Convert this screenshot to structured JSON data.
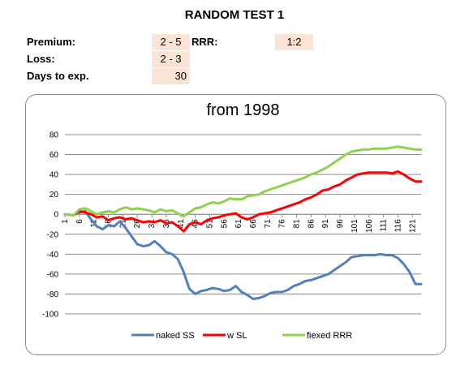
{
  "header": {
    "title": "RANDOM TEST 1",
    "premium_label": "Premium:",
    "premium_value": "2 - 5",
    "rrr_label": "RRR:",
    "rrr_value": "1:2",
    "loss_label": "Loss:",
    "loss_value": "2 - 3",
    "days_label": "Days to exp.",
    "days_value": "30"
  },
  "chart_data": {
    "type": "line",
    "title": "from 1998",
    "ylim": [
      -100,
      80
    ],
    "yticks": [
      -100,
      -80,
      -60,
      -40,
      -20,
      0,
      20,
      40,
      60,
      80
    ],
    "xlim": [
      1,
      124
    ],
    "xticks": [
      1,
      6,
      11,
      16,
      21,
      26,
      31,
      36,
      41,
      46,
      51,
      56,
      61,
      66,
      71,
      76,
      81,
      86,
      91,
      96,
      101,
      106,
      111,
      116,
      121
    ],
    "grid": true,
    "legend_position": "bottom",
    "series": [
      {
        "name": "naked SS",
        "color": "#4f81bd",
        "points": [
          [
            1,
            0
          ],
          [
            4,
            -1
          ],
          [
            6,
            2
          ],
          [
            8,
            3
          ],
          [
            10,
            -5
          ],
          [
            12,
            -12
          ],
          [
            14,
            -15
          ],
          [
            16,
            -11
          ],
          [
            18,
            -12
          ],
          [
            20,
            -7
          ],
          [
            22,
            -14
          ],
          [
            24,
            -22
          ],
          [
            26,
            -30
          ],
          [
            28,
            -32
          ],
          [
            30,
            -31
          ],
          [
            32,
            -27
          ],
          [
            34,
            -32
          ],
          [
            36,
            -38
          ],
          [
            38,
            -40
          ],
          [
            40,
            -45
          ],
          [
            42,
            -58
          ],
          [
            44,
            -75
          ],
          [
            46,
            -80
          ],
          [
            48,
            -77
          ],
          [
            50,
            -76
          ],
          [
            52,
            -74
          ],
          [
            54,
            -75
          ],
          [
            56,
            -77
          ],
          [
            58,
            -76
          ],
          [
            60,
            -72
          ],
          [
            62,
            -78
          ],
          [
            64,
            -81
          ],
          [
            66,
            -85
          ],
          [
            68,
            -84
          ],
          [
            70,
            -82
          ],
          [
            72,
            -79
          ],
          [
            74,
            -78
          ],
          [
            76,
            -78
          ],
          [
            78,
            -76
          ],
          [
            80,
            -72
          ],
          [
            82,
            -70
          ],
          [
            84,
            -67
          ],
          [
            86,
            -66
          ],
          [
            88,
            -64
          ],
          [
            90,
            -62
          ],
          [
            92,
            -60
          ],
          [
            94,
            -56
          ],
          [
            96,
            -52
          ],
          [
            98,
            -48
          ],
          [
            100,
            -43
          ],
          [
            102,
            -42
          ],
          [
            104,
            -41
          ],
          [
            106,
            -41
          ],
          [
            108,
            -41
          ],
          [
            110,
            -40
          ],
          [
            112,
            -41
          ],
          [
            114,
            -41
          ],
          [
            116,
            -44
          ],
          [
            118,
            -50
          ],
          [
            120,
            -58
          ],
          [
            122,
            -70
          ],
          [
            124,
            -70
          ]
        ]
      },
      {
        "name": "w SL",
        "color": "#ff0000",
        "points": [
          [
            1,
            0
          ],
          [
            4,
            -1
          ],
          [
            6,
            3
          ],
          [
            8,
            2
          ],
          [
            10,
            0
          ],
          [
            12,
            -3
          ],
          [
            14,
            -2
          ],
          [
            16,
            -6
          ],
          [
            18,
            -4
          ],
          [
            20,
            -3
          ],
          [
            22,
            -5
          ],
          [
            24,
            -4
          ],
          [
            26,
            -6
          ],
          [
            28,
            -8
          ],
          [
            30,
            -7
          ],
          [
            32,
            -8
          ],
          [
            34,
            -6
          ],
          [
            36,
            -9
          ],
          [
            38,
            -8
          ],
          [
            40,
            -12
          ],
          [
            42,
            -17
          ],
          [
            44,
            -10
          ],
          [
            46,
            -8
          ],
          [
            48,
            -10
          ],
          [
            50,
            -6
          ],
          [
            52,
            -4
          ],
          [
            54,
            -3
          ],
          [
            56,
            -1
          ],
          [
            58,
            0
          ],
          [
            60,
            1
          ],
          [
            62,
            -3
          ],
          [
            64,
            -5
          ],
          [
            66,
            -3
          ],
          [
            68,
            0
          ],
          [
            70,
            1
          ],
          [
            72,
            2
          ],
          [
            74,
            4
          ],
          [
            76,
            6
          ],
          [
            78,
            8
          ],
          [
            80,
            10
          ],
          [
            82,
            12
          ],
          [
            84,
            15
          ],
          [
            86,
            17
          ],
          [
            88,
            20
          ],
          [
            90,
            24
          ],
          [
            92,
            25
          ],
          [
            94,
            28
          ],
          [
            96,
            30
          ],
          [
            98,
            34
          ],
          [
            100,
            37
          ],
          [
            102,
            40
          ],
          [
            104,
            41
          ],
          [
            106,
            42
          ],
          [
            108,
            42
          ],
          [
            110,
            42
          ],
          [
            112,
            42
          ],
          [
            114,
            41
          ],
          [
            116,
            43
          ],
          [
            118,
            40
          ],
          [
            120,
            36
          ],
          [
            122,
            33
          ],
          [
            124,
            33
          ]
        ]
      },
      {
        "name": "fiexed RRR",
        "color": "#92d050",
        "points": [
          [
            1,
            0
          ],
          [
            4,
            -1
          ],
          [
            6,
            5
          ],
          [
            8,
            6
          ],
          [
            10,
            3
          ],
          [
            12,
            0
          ],
          [
            14,
            2
          ],
          [
            16,
            3
          ],
          [
            18,
            2
          ],
          [
            20,
            5
          ],
          [
            22,
            7
          ],
          [
            24,
            5
          ],
          [
            26,
            6
          ],
          [
            28,
            5
          ],
          [
            30,
            4
          ],
          [
            32,
            2
          ],
          [
            34,
            5
          ],
          [
            36,
            3
          ],
          [
            38,
            4
          ],
          [
            40,
            1
          ],
          [
            42,
            -2
          ],
          [
            44,
            2
          ],
          [
            46,
            6
          ],
          [
            48,
            7
          ],
          [
            50,
            10
          ],
          [
            52,
            12
          ],
          [
            54,
            11
          ],
          [
            56,
            13
          ],
          [
            58,
            16
          ],
          [
            60,
            15
          ],
          [
            62,
            15
          ],
          [
            64,
            18
          ],
          [
            66,
            19
          ],
          [
            68,
            20
          ],
          [
            70,
            23
          ],
          [
            72,
            25
          ],
          [
            74,
            27
          ],
          [
            76,
            29
          ],
          [
            78,
            31
          ],
          [
            80,
            33
          ],
          [
            82,
            35
          ],
          [
            84,
            37
          ],
          [
            86,
            40
          ],
          [
            88,
            42
          ],
          [
            90,
            45
          ],
          [
            92,
            48
          ],
          [
            94,
            52
          ],
          [
            96,
            56
          ],
          [
            98,
            60
          ],
          [
            100,
            63
          ],
          [
            102,
            64
          ],
          [
            104,
            65
          ],
          [
            106,
            65
          ],
          [
            108,
            66
          ],
          [
            110,
            66
          ],
          [
            112,
            66
          ],
          [
            114,
            67
          ],
          [
            116,
            68
          ],
          [
            118,
            67
          ],
          [
            120,
            66
          ],
          [
            122,
            65
          ],
          [
            124,
            65
          ]
        ]
      }
    ]
  }
}
